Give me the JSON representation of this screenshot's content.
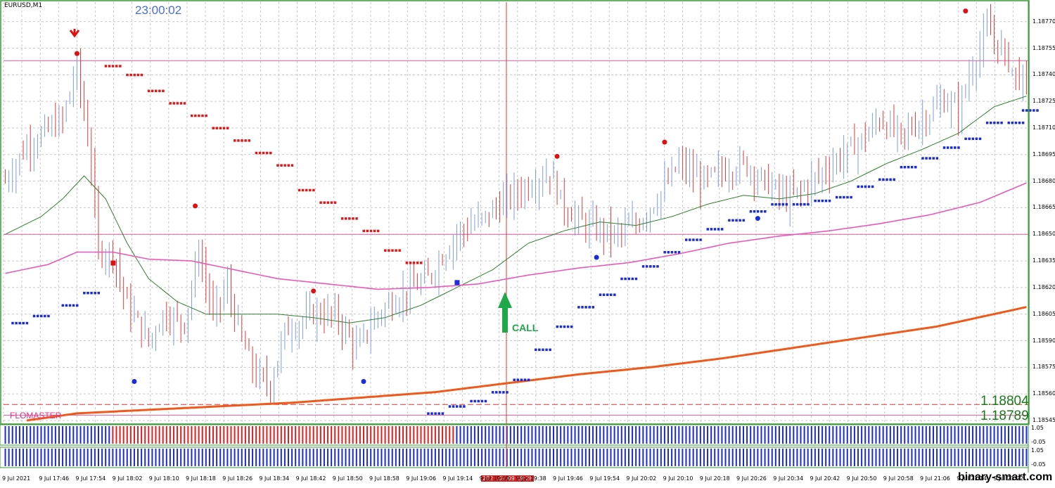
{
  "window": {
    "symbol": "EURUSD,M1",
    "clock": "23:00:02",
    "indicator_name": "FLOMASTER",
    "signal_label": "CALL",
    "watermark": "binary-smart.com",
    "cursor_date": "2021.07.09 19:28"
  },
  "price_labels": [
    "1.18804",
    "1.18789"
  ],
  "subwindow_labels": {
    "sub1_top": "1.05",
    "sub1_bottom": "-0.05",
    "sub2_top": "1.05",
    "sub2_bottom": "-0.05"
  },
  "colors": {
    "grid": "#c8c8c8",
    "up_bar": "#7d9ce6",
    "down_bar": "#e23a3a",
    "ma_fast": "#2f7f2f",
    "ma_mid": "#e85ab8",
    "ma_slow": "#ee5a1c",
    "level_line": "#e05a9a",
    "call_arrow": "#1ea84a",
    "hist_up": "#1a2bd8",
    "hist_down": "#e02020",
    "frame": "#3a9a3a"
  },
  "chart_data": {
    "type": "candlestick",
    "symbol": "EURUSD",
    "timeframe": "M1",
    "y_ticks": [
      "1.18770",
      "1.18755",
      "1.18740",
      "1.18725",
      "1.18710",
      "1.18695",
      "1.18680",
      "1.18665",
      "1.18650",
      "1.18635",
      "1.18620",
      "1.18605",
      "1.18590",
      "1.18575",
      "1.18560",
      "1.18545"
    ],
    "ylim": [
      1.18543,
      1.18781
    ],
    "x_ticks": [
      "9 Jul 2021",
      "9 Jul 17:46",
      "9 Jul 17:54",
      "9 Jul 18:02",
      "9 Jul 18:10",
      "9 Jul 18:18",
      "9 Jul 18:26",
      "9 Jul 18:34",
      "9 Jul 18:42",
      "9 Jul 18:50",
      "9 Jul 18:58",
      "9 Jul 19:06",
      "9 Jul 19:14",
      "9 Jul 19:30",
      "9 Jul 19:38",
      "9 Jul 19:46",
      "9 Jul 19:54",
      "9 Jul 20:02",
      "9 Jul 20:10",
      "9 Jul 20:18",
      "9 Jul 20:26",
      "9 Jul 20:34",
      "9 Jul 20:42",
      "9 Jul 20:50",
      "9 Jul 20:58",
      "9 Jul 21:06",
      "9 Jul 21:14",
      "9 Jul 21:22"
    ],
    "horizontal_levels": [
      1.18748,
      1.1865,
      1.18554,
      1.18548
    ],
    "series": [
      {
        "role": "bars",
        "anchors": [
          [
            0,
            1.1868
          ],
          [
            6,
            1.187
          ],
          [
            16,
            1.18715
          ],
          [
            20,
            1.18745
          ],
          [
            24,
            1.1869
          ],
          [
            26,
            1.1864
          ],
          [
            30,
            1.1864
          ],
          [
            34,
            1.1861
          ],
          [
            40,
            1.1859
          ],
          [
            44,
            1.18605
          ],
          [
            50,
            1.186
          ],
          [
            54,
            1.1864
          ],
          [
            58,
            1.18605
          ],
          [
            62,
            1.1862
          ],
          [
            66,
            1.1859
          ],
          [
            70,
            1.1857
          ],
          [
            74,
            1.18565
          ],
          [
            78,
            1.18595
          ],
          [
            82,
            1.186
          ],
          [
            86,
            1.18605
          ],
          [
            92,
            1.18605
          ],
          [
            98,
            1.18585
          ],
          [
            104,
            1.18605
          ],
          [
            110,
            1.18615
          ],
          [
            118,
            1.18625
          ],
          [
            126,
            1.1865
          ],
          [
            134,
            1.1866
          ],
          [
            140,
            1.1867
          ],
          [
            148,
            1.1868
          ],
          [
            152,
            1.18685
          ],
          [
            156,
            1.18665
          ],
          [
            162,
            1.18655
          ],
          [
            170,
            1.1865
          ],
          [
            176,
            1.18655
          ],
          [
            182,
            1.1867
          ],
          [
            188,
            1.1869
          ],
          [
            194,
            1.1868
          ],
          [
            200,
            1.18685
          ],
          [
            206,
            1.1869
          ],
          [
            212,
            1.1868
          ],
          [
            218,
            1.1867
          ],
          [
            222,
            1.18675
          ],
          [
            228,
            1.18685
          ],
          [
            234,
            1.18695
          ],
          [
            240,
            1.18705
          ],
          [
            244,
            1.18715
          ],
          [
            250,
            1.18705
          ],
          [
            256,
            1.18715
          ],
          [
            262,
            1.18725
          ],
          [
            266,
            1.1872
          ],
          [
            270,
            1.18745
          ],
          [
            274,
            1.18765
          ],
          [
            278,
            1.18755
          ],
          [
            282,
            1.1874
          ],
          [
            285,
            1.18735
          ]
        ]
      },
      {
        "role": "ma_fast",
        "anchors": [
          [
            0,
            1.1865
          ],
          [
            10,
            1.1866
          ],
          [
            16,
            1.1867
          ],
          [
            22,
            1.18683
          ],
          [
            28,
            1.1867
          ],
          [
            34,
            1.18645
          ],
          [
            40,
            1.18625
          ],
          [
            48,
            1.18612
          ],
          [
            56,
            1.18605
          ],
          [
            66,
            1.18605
          ],
          [
            76,
            1.18605
          ],
          [
            86,
            1.18603
          ],
          [
            96,
            1.186
          ],
          [
            106,
            1.18603
          ],
          [
            116,
            1.1861
          ],
          [
            126,
            1.1862
          ],
          [
            136,
            1.1863
          ],
          [
            146,
            1.18645
          ],
          [
            156,
            1.18652
          ],
          [
            166,
            1.18657
          ],
          [
            176,
            1.18655
          ],
          [
            186,
            1.1866
          ],
          [
            196,
            1.18667
          ],
          [
            206,
            1.18672
          ],
          [
            216,
            1.1867
          ],
          [
            226,
            1.18673
          ],
          [
            236,
            1.1868
          ],
          [
            246,
            1.1869
          ],
          [
            256,
            1.18698
          ],
          [
            266,
            1.18707
          ],
          [
            276,
            1.18722
          ],
          [
            285,
            1.18728
          ]
        ]
      },
      {
        "role": "ma_mid",
        "anchors": [
          [
            0,
            1.18628
          ],
          [
            12,
            1.18633
          ],
          [
            20,
            1.1864
          ],
          [
            30,
            1.1864
          ],
          [
            40,
            1.18636
          ],
          [
            52,
            1.18635
          ],
          [
            64,
            1.1863
          ],
          [
            76,
            1.18625
          ],
          [
            90,
            1.18622
          ],
          [
            104,
            1.18619
          ],
          [
            118,
            1.1862
          ],
          [
            132,
            1.18622
          ],
          [
            146,
            1.18627
          ],
          [
            160,
            1.18631
          ],
          [
            174,
            1.18634
          ],
          [
            188,
            1.18639
          ],
          [
            202,
            1.18645
          ],
          [
            216,
            1.18649
          ],
          [
            230,
            1.18652
          ],
          [
            244,
            1.18656
          ],
          [
            258,
            1.18661
          ],
          [
            272,
            1.18668
          ],
          [
            285,
            1.18679
          ]
        ]
      },
      {
        "role": "ma_slow",
        "anchors": [
          [
            6,
            1.18545
          ],
          [
            20,
            1.18549
          ],
          [
            40,
            1.18551
          ],
          [
            60,
            1.18553
          ],
          [
            80,
            1.18555
          ],
          [
            100,
            1.18558
          ],
          [
            120,
            1.18561
          ],
          [
            140,
            1.18566
          ],
          [
            160,
            1.18571
          ],
          [
            180,
            1.18575
          ],
          [
            200,
            1.1858
          ],
          [
            220,
            1.18586
          ],
          [
            240,
            1.18592
          ],
          [
            260,
            1.18598
          ],
          [
            285,
            1.18609
          ]
        ]
      },
      {
        "role": "stair_down",
        "steps": [
          [
            28,
            1.18745
          ],
          [
            34,
            1.1874
          ],
          [
            40,
            1.18731
          ],
          [
            46,
            1.18724
          ],
          [
            52,
            1.18717
          ],
          [
            58,
            1.1871
          ],
          [
            64,
            1.18703
          ],
          [
            70,
            1.18696
          ],
          [
            76,
            1.18689
          ],
          [
            82,
            1.18675
          ],
          [
            88,
            1.18668
          ],
          [
            94,
            1.18659
          ],
          [
            100,
            1.18652
          ],
          [
            106,
            1.18641
          ],
          [
            112,
            1.18634
          ]
        ]
      },
      {
        "role": "stair_up",
        "steps": [
          [
            2,
            1.186
          ],
          [
            8,
            1.18604
          ],
          [
            16,
            1.1861
          ],
          [
            22,
            1.18617
          ],
          [
            118,
            1.18549
          ],
          [
            124,
            1.18553
          ],
          [
            130,
            1.18556
          ],
          [
            136,
            1.18561
          ],
          [
            142,
            1.18568
          ],
          [
            148,
            1.18585
          ],
          [
            154,
            1.18598
          ],
          [
            160,
            1.18609
          ],
          [
            166,
            1.18616
          ],
          [
            172,
            1.18625
          ],
          [
            178,
            1.18632
          ],
          [
            184,
            1.1864
          ],
          [
            190,
            1.18647
          ],
          [
            196,
            1.18653
          ],
          [
            202,
            1.18658
          ],
          [
            208,
            1.18663
          ],
          [
            214,
            1.18667
          ],
          [
            220,
            1.18667
          ],
          [
            226,
            1.18669
          ],
          [
            232,
            1.18671
          ],
          [
            238,
            1.18677
          ],
          [
            244,
            1.18681
          ],
          [
            250,
            1.18688
          ],
          [
            256,
            1.18693
          ],
          [
            262,
            1.18699
          ],
          [
            268,
            1.18704
          ],
          [
            274,
            1.18713
          ],
          [
            280,
            1.18713
          ],
          [
            284,
            1.1872
          ]
        ]
      },
      {
        "role": "dots_red",
        "points": [
          [
            20,
            1.18752
          ],
          [
            53,
            1.18666
          ],
          [
            86,
            1.18618
          ],
          [
            154,
            1.18694
          ],
          [
            184,
            1.18702
          ],
          [
            268,
            1.18776
          ]
        ]
      },
      {
        "role": "dots_blue",
        "points": [
          [
            36,
            1.18567
          ],
          [
            100,
            1.18567
          ],
          [
            165,
            1.18637
          ],
          [
            210,
            1.18659
          ]
        ]
      },
      {
        "role": "hist1",
        "down_range": [
          30,
          125
        ]
      },
      {
        "role": "hist2",
        "down_range": []
      }
    ]
  }
}
